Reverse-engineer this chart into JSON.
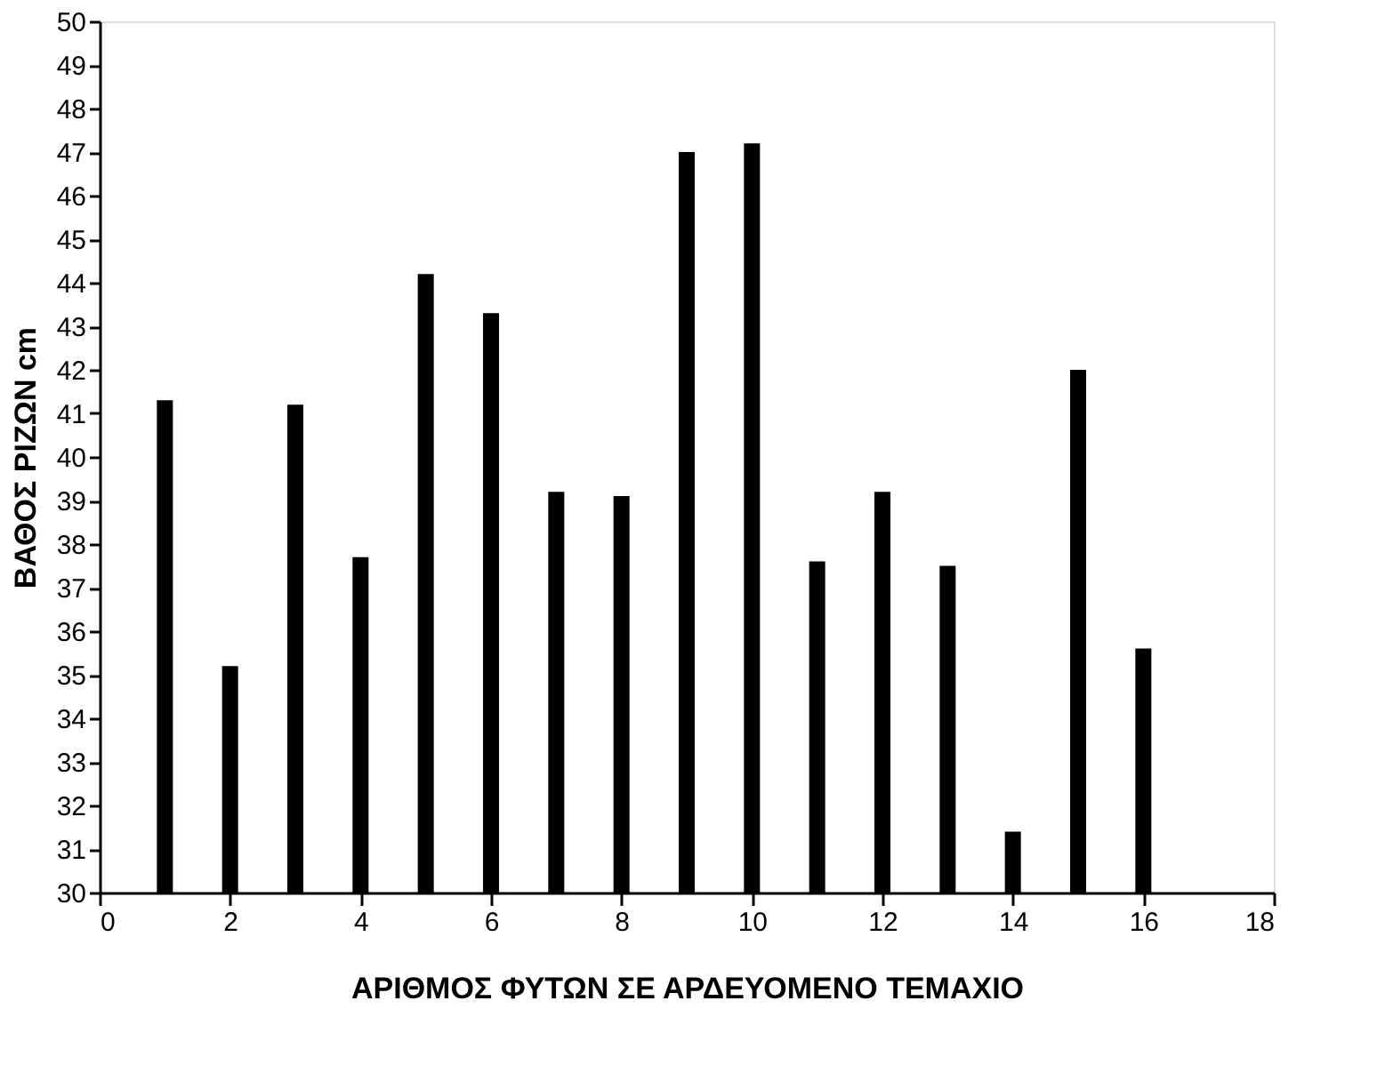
{
  "chart_data": {
    "type": "bar",
    "xlabel": "ΑΡΙΘΜΟΣ ΦΥΤΩΝ ΣΕ ΑΡΔΕΥΟΜΕΝΟ ΤΕΜΑΧΙΟ",
    "ylabel": "ΒΑΘΟΣ ΡΙΖΩΝ cm",
    "x": [
      1,
      2,
      3,
      4,
      5,
      6,
      7,
      8,
      9,
      10,
      11,
      12,
      13,
      14,
      15,
      16
    ],
    "series": [
      {
        "color": "#000000",
        "values": [
          41.3,
          35.2,
          41.2,
          37.7,
          44.2,
          43.3,
          39.2,
          39.1,
          47.0,
          47.2,
          37.6,
          39.2,
          37.5,
          31.4,
          42.0,
          35.6
        ]
      }
    ],
    "xlim": [
      0,
      18
    ],
    "xticks": [
      0,
      2,
      4,
      6,
      8,
      10,
      12,
      14,
      16,
      18
    ],
    "ylim": [
      30,
      50
    ],
    "yticks": [
      30,
      31,
      32,
      33,
      34,
      35,
      36,
      37,
      38,
      39,
      40,
      41,
      42,
      43,
      44,
      45,
      46,
      47,
      48,
      49,
      50
    ],
    "grid": false
  }
}
